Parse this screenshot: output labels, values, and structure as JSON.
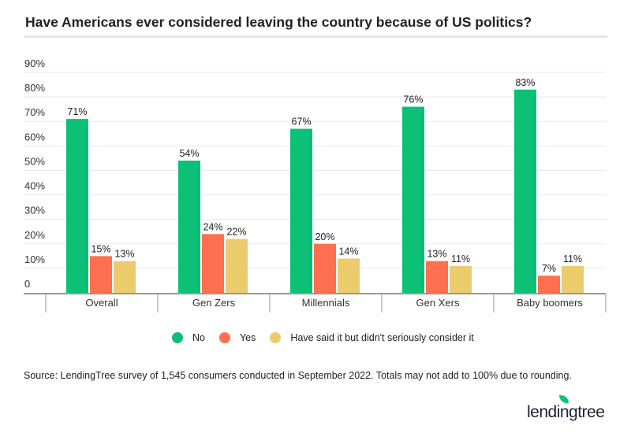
{
  "chart_data": {
    "type": "bar",
    "title": "Have Americans ever considered leaving the country because of US politics?",
    "categories": [
      "Overall",
      "Gen Zers",
      "Millennials",
      "Gen Xers",
      "Baby boomers"
    ],
    "series": [
      {
        "name": "No",
        "color": "#0cc078",
        "values": [
          71,
          54,
          67,
          76,
          83
        ]
      },
      {
        "name": "Yes",
        "color": "#fe704f",
        "values": [
          15,
          24,
          20,
          13,
          7
        ]
      },
      {
        "name": "Have said it but didn't seriously consider it",
        "color": "#eccb6d",
        "values": [
          13,
          22,
          14,
          11,
          11
        ]
      }
    ],
    "yticks": [
      "0",
      "10%",
      "20%",
      "30%",
      "40%",
      "50%",
      "60%",
      "70%",
      "80%",
      "90%"
    ],
    "ylim": [
      0,
      90
    ],
    "grid": true,
    "legend_position": "bottom"
  },
  "source": "Source: LendingTree survey of 1,545 consumers conducted in September 2022. Totals may not add to 100% due to rounding.",
  "logo": "lendingtree"
}
